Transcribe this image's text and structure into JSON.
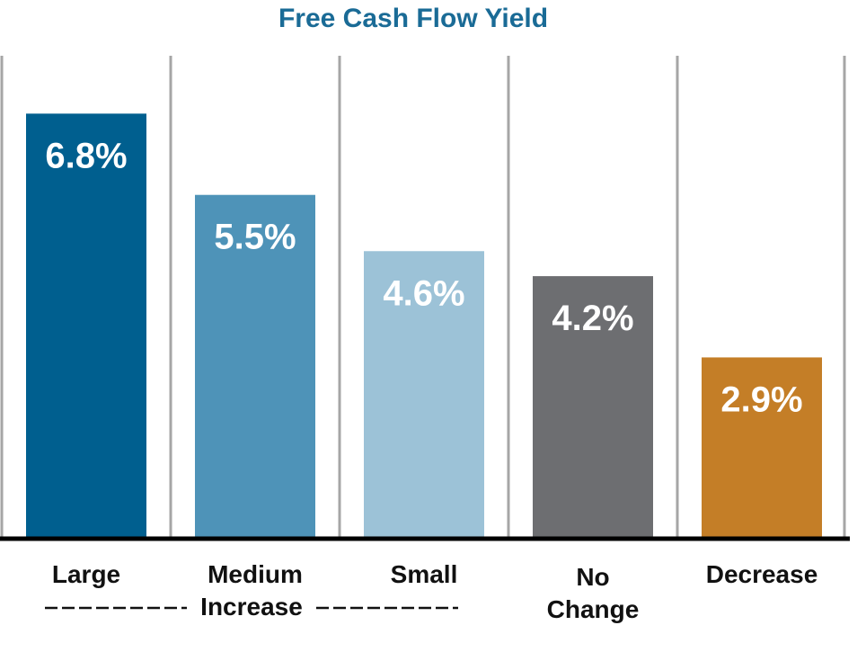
{
  "chart_data": {
    "type": "bar",
    "title": "Free Cash Flow Yield",
    "categories": [
      "Large",
      "Medium",
      "Small",
      "No Change",
      "Decrease"
    ],
    "category_lines": [
      [
        "Large"
      ],
      [
        "Medium"
      ],
      [
        "Small"
      ],
      [
        "No",
        "Change"
      ],
      [
        "Decrease"
      ]
    ],
    "values": [
      6.8,
      5.5,
      4.6,
      4.2,
      2.9
    ],
    "value_labels": [
      "6.8%",
      "5.5%",
      "4.6%",
      "4.2%",
      "2.9%"
    ],
    "colors": [
      "#005f8f",
      "#4e93b8",
      "#9cc2d7",
      "#6d6e71",
      "#c47e27"
    ],
    "group_label": "Increase",
    "group_span": [
      0,
      2
    ],
    "ylim": [
      0,
      8.1
    ],
    "grid": false,
    "legend": "none"
  }
}
